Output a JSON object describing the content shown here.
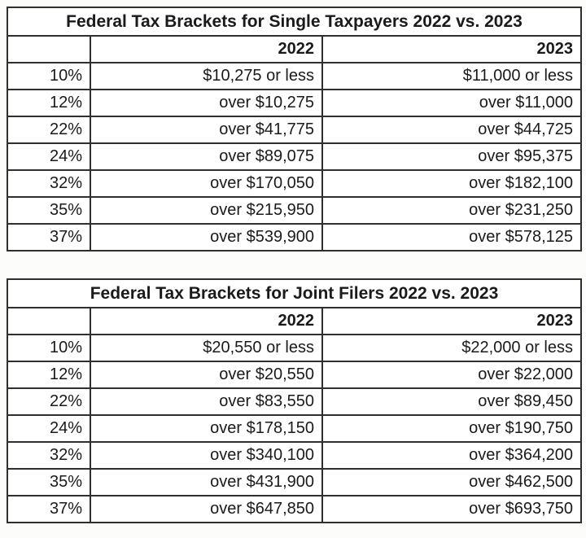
{
  "page": {
    "background": "#fcfcfb",
    "cell_background": "#ffffff",
    "border_color": "#2f2f2f",
    "text_color": "#1a1a1a"
  },
  "chart_data": [
    {
      "type": "table",
      "title": "Federal Tax Brackets for Single Taxpayers 2022 vs. 2023",
      "header": [
        "",
        "2022",
        "2023"
      ],
      "rows": [
        [
          "10%",
          "$10,275 or less",
          "$11,000 or less"
        ],
        [
          "12%",
          "over $10,275",
          "over $11,000"
        ],
        [
          "22%",
          "over $41,775",
          "over $44,725"
        ],
        [
          "24%",
          "over $89,075",
          "over $95,375"
        ],
        [
          "32%",
          "over $170,050",
          "over $182,100"
        ],
        [
          "35%",
          "over $215,950",
          "over $231,250"
        ],
        [
          "37%",
          "over $539,900",
          "over $578,125"
        ]
      ]
    },
    {
      "type": "table",
      "title": "Federal Tax Brackets for Joint Filers 2022 vs. 2023",
      "header": [
        "",
        "2022",
        "2023"
      ],
      "rows": [
        [
          "10%",
          "$20,550 or less",
          "$22,000 or less"
        ],
        [
          "12%",
          "over $20,550",
          "over $22,000"
        ],
        [
          "22%",
          "over $83,550",
          "over $89,450"
        ],
        [
          "24%",
          "over $178,150",
          "over $190,750"
        ],
        [
          "32%",
          "over $340,100",
          "over $364,200"
        ],
        [
          "35%",
          "over $431,900",
          "over $462,500"
        ],
        [
          "37%",
          "over $647,850",
          "over $693,750"
        ]
      ]
    }
  ]
}
